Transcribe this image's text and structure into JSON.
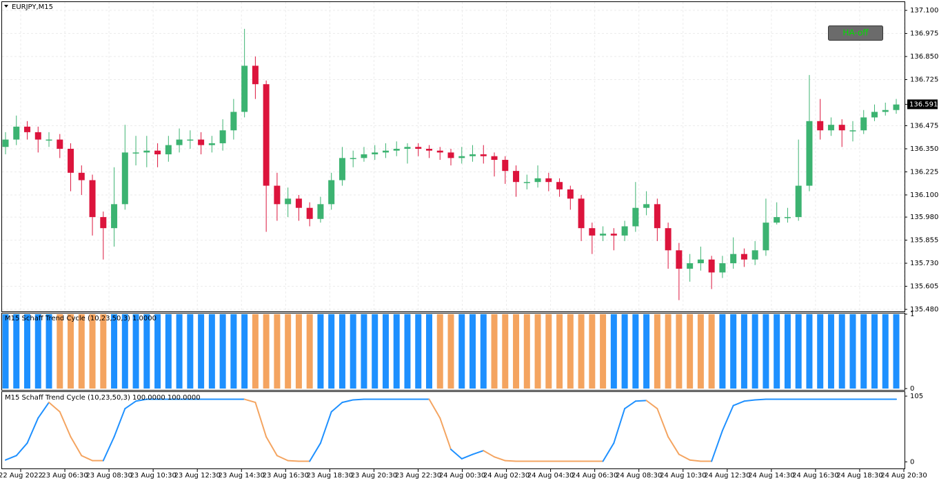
{
  "header": {
    "symbol": "EURJPY,M15"
  },
  "button": {
    "label": "HA-off"
  },
  "time_labels": [
    "22 Aug 2022",
    "23 Aug 06:30",
    "23 Aug 08:30",
    "23 Aug 10:30",
    "23 Aug 12:30",
    "23 Aug 14:30",
    "23 Aug 16:30",
    "23 Aug 18:30",
    "23 Aug 20:30",
    "23 Aug 22:30",
    "24 Aug 00:30",
    "24 Aug 02:30",
    "24 Aug 04:30",
    "24 Aug 06:30",
    "24 Aug 08:30",
    "24 Aug 10:30",
    "24 Aug 12:30",
    "24 Aug 14:30",
    "24 Aug 16:30",
    "24 Aug 18:30",
    "24 Aug 20:30"
  ],
  "chart_data": [
    {
      "type": "candlestick",
      "up_color": "#3cb371",
      "down_color": "#dc143c",
      "grid": true,
      "ylim": [
        135.469,
        137.145
      ],
      "yticks": [
        {
          "value": 137.1,
          "label": "137.100"
        },
        {
          "value": 136.975,
          "label": "136.975"
        },
        {
          "value": 136.85,
          "label": "136.850"
        },
        {
          "value": 136.725,
          "label": "136.725"
        },
        {
          "value": 136.475,
          "label": "136.475"
        },
        {
          "value": 136.35,
          "label": "136.350"
        },
        {
          "value": 136.225,
          "label": "136.225"
        },
        {
          "value": 136.1,
          "label": "136.100"
        },
        {
          "value": 135.98,
          "label": "135.980"
        },
        {
          "value": 135.855,
          "label": "135.855"
        },
        {
          "value": 135.73,
          "label": "135.730"
        },
        {
          "value": 135.605,
          "label": "135.605"
        },
        {
          "value": 135.48,
          "label": "135.480"
        }
      ],
      "current_price": {
        "value": 136.591,
        "label": "136.591"
      },
      "open": [
        136.36,
        136.4,
        136.47,
        136.44,
        136.4,
        136.4,
        136.35,
        136.22,
        136.18,
        135.98,
        135.92,
        136.05,
        136.33,
        136.33,
        136.34,
        136.32,
        136.37,
        136.4,
        136.4,
        136.37,
        136.38,
        136.45,
        136.55,
        136.8,
        136.7,
        136.15,
        136.05,
        136.08,
        136.03,
        135.97,
        136.05,
        136.18,
        136.3,
        136.3,
        136.32,
        136.33,
        136.34,
        136.35,
        136.36,
        136.35,
        136.34,
        136.33,
        136.3,
        136.31,
        136.32,
        136.31,
        136.29,
        136.23,
        136.17,
        136.17,
        136.19,
        136.17,
        136.13,
        136.08,
        135.92,
        135.88,
        135.89,
        135.88,
        135.93,
        136.03,
        136.05,
        135.92,
        135.8,
        135.7,
        135.73,
        135.75,
        135.68,
        135.73,
        135.78,
        135.75,
        135.8,
        135.95,
        135.98,
        135.98,
        136.15,
        136.5,
        136.45,
        136.48,
        136.45,
        136.45,
        136.52,
        136.55,
        136.56
      ],
      "high": [
        136.44,
        136.53,
        136.5,
        136.47,
        136.44,
        136.43,
        136.38,
        136.26,
        136.21,
        136.01,
        136.25,
        136.48,
        136.42,
        136.42,
        136.38,
        136.42,
        136.46,
        136.45,
        136.44,
        136.42,
        136.51,
        136.62,
        137.0,
        136.85,
        136.72,
        136.22,
        136.14,
        136.1,
        136.06,
        136.09,
        136.22,
        136.36,
        136.34,
        136.36,
        136.37,
        136.38,
        136.39,
        136.38,
        136.38,
        136.37,
        136.36,
        136.35,
        136.36,
        136.37,
        136.37,
        136.33,
        136.31,
        136.26,
        136.21,
        136.26,
        136.22,
        136.19,
        136.15,
        136.1,
        135.95,
        135.93,
        135.92,
        135.96,
        136.17,
        136.12,
        136.08,
        135.95,
        135.84,
        135.78,
        135.82,
        135.77,
        135.77,
        135.87,
        135.81,
        135.85,
        136.08,
        136.06,
        136.03,
        136.4,
        136.75,
        136.62,
        136.52,
        136.51,
        136.5,
        136.56,
        136.59,
        136.6,
        136.62
      ],
      "low": [
        136.32,
        136.37,
        136.4,
        136.33,
        136.36,
        136.3,
        136.12,
        136.1,
        135.88,
        135.75,
        135.82,
        136.02,
        136.26,
        136.25,
        136.25,
        136.28,
        136.33,
        136.35,
        136.32,
        136.33,
        136.34,
        136.4,
        136.52,
        136.62,
        135.9,
        135.96,
        135.98,
        135.96,
        135.93,
        135.95,
        136.02,
        136.15,
        136.25,
        136.28,
        136.29,
        136.3,
        136.31,
        136.27,
        136.31,
        136.3,
        136.29,
        136.26,
        136.27,
        136.28,
        136.27,
        136.2,
        136.16,
        136.09,
        136.13,
        136.14,
        136.12,
        136.09,
        136.02,
        135.85,
        135.78,
        135.85,
        135.8,
        135.85,
        135.9,
        135.99,
        135.85,
        135.7,
        135.53,
        135.63,
        135.69,
        135.59,
        135.65,
        135.7,
        135.71,
        135.72,
        135.77,
        135.94,
        135.95,
        135.96,
        136.12,
        136.4,
        136.42,
        136.36,
        136.39,
        136.43,
        136.5,
        136.53,
        136.54
      ],
      "close": [
        136.4,
        136.47,
        136.44,
        136.4,
        136.4,
        136.35,
        136.22,
        136.18,
        135.98,
        135.92,
        136.05,
        136.33,
        136.33,
        136.34,
        136.32,
        136.37,
        136.4,
        136.4,
        136.37,
        136.38,
        136.45,
        136.55,
        136.8,
        136.7,
        136.15,
        136.05,
        136.08,
        136.03,
        135.97,
        136.05,
        136.18,
        136.3,
        136.3,
        136.32,
        136.33,
        136.34,
        136.35,
        136.36,
        136.35,
        136.34,
        136.33,
        136.3,
        136.31,
        136.32,
        136.31,
        136.29,
        136.23,
        136.17,
        136.17,
        136.19,
        136.17,
        136.13,
        136.08,
        135.92,
        135.88,
        135.89,
        135.88,
        135.93,
        136.03,
        136.05,
        135.92,
        135.8,
        135.7,
        135.73,
        135.75,
        135.68,
        135.73,
        135.78,
        135.75,
        135.8,
        135.95,
        135.98,
        135.98,
        136.15,
        136.5,
        136.45,
        136.48,
        136.45,
        136.45,
        136.52,
        136.55,
        136.56,
        136.59
      ]
    },
    {
      "type": "bar",
      "label": "M15 Schaff Trend Cycle (10,23,50,3) 1.0000",
      "ylim": [
        0,
        1
      ],
      "yticks": [
        1,
        0
      ],
      "values": [
        1,
        1,
        1,
        1,
        1,
        1,
        1,
        1,
        1,
        1,
        1,
        1,
        1,
        1,
        1,
        1,
        1,
        1,
        1,
        1,
        1,
        1,
        1,
        1,
        1,
        1,
        1,
        1,
        1,
        1,
        1,
        1,
        1,
        1,
        1,
        1,
        1,
        1,
        1,
        1,
        1,
        1,
        1,
        1,
        1,
        1,
        1,
        1,
        1,
        1,
        1,
        1,
        1,
        1,
        1,
        1,
        1,
        1,
        1,
        1,
        1,
        1,
        1,
        1,
        1,
        1,
        1,
        1,
        1,
        1,
        1,
        1,
        1,
        1,
        1,
        1,
        1,
        1,
        1,
        1,
        1,
        1,
        1
      ],
      "colors": [
        "#1e90ff",
        "#1e90ff",
        "#1e90ff",
        "#1e90ff",
        "#1e90ff",
        "#f4a460",
        "#f4a460",
        "#f4a460",
        "#f4a460",
        "#f4a460",
        "#1e90ff",
        "#1e90ff",
        "#1e90ff",
        "#1e90ff",
        "#1e90ff",
        "#1e90ff",
        "#1e90ff",
        "#1e90ff",
        "#1e90ff",
        "#1e90ff",
        "#1e90ff",
        "#1e90ff",
        "#1e90ff",
        "#f4a460",
        "#f4a460",
        "#f4a460",
        "#f4a460",
        "#f4a460",
        "#f4a460",
        "#1e90ff",
        "#1e90ff",
        "#1e90ff",
        "#1e90ff",
        "#1e90ff",
        "#1e90ff",
        "#1e90ff",
        "#1e90ff",
        "#1e90ff",
        "#1e90ff",
        "#1e90ff",
        "#f4a460",
        "#f4a460",
        "#1e90ff",
        "#1e90ff",
        "#1e90ff",
        "#f4a460",
        "#f4a460",
        "#f4a460",
        "#f4a460",
        "#f4a460",
        "#f4a460",
        "#f4a460",
        "#f4a460",
        "#f4a460",
        "#f4a460",
        "#f4a460",
        "#1e90ff",
        "#1e90ff",
        "#1e90ff",
        "#1e90ff",
        "#f4a460",
        "#f4a460",
        "#f4a460",
        "#f4a460",
        "#f4a460",
        "#f4a460",
        "#1e90ff",
        "#1e90ff",
        "#1e90ff",
        "#1e90ff",
        "#1e90ff",
        "#1e90ff",
        "#1e90ff",
        "#1e90ff",
        "#1e90ff",
        "#1e90ff",
        "#1e90ff",
        "#1e90ff",
        "#1e90ff",
        "#1e90ff",
        "#1e90ff",
        "#1e90ff",
        "#1e90ff"
      ]
    },
    {
      "type": "line",
      "label": "M15 Schaff Trend Cycle (10,23,50,3) 100.0000 100.0000",
      "ylim": [
        -5,
        105
      ],
      "yticks": [
        105,
        0
      ],
      "values": [
        3,
        10,
        30,
        70,
        95,
        80,
        40,
        10,
        2,
        2,
        40,
        85,
        97,
        100,
        100,
        100,
        100,
        100,
        100,
        100,
        100,
        100,
        100,
        95,
        40,
        10,
        2,
        1,
        1,
        30,
        80,
        95,
        99,
        100,
        100,
        100,
        100,
        100,
        100,
        100,
        70,
        20,
        5,
        12,
        18,
        8,
        2,
        1,
        1,
        1,
        1,
        1,
        1,
        1,
        1,
        1,
        30,
        85,
        97,
        98,
        85,
        40,
        12,
        3,
        1,
        1,
        50,
        90,
        97,
        99,
        100,
        100,
        100,
        100,
        100,
        100,
        100,
        100,
        100,
        100,
        100,
        100,
        100
      ]
    }
  ]
}
